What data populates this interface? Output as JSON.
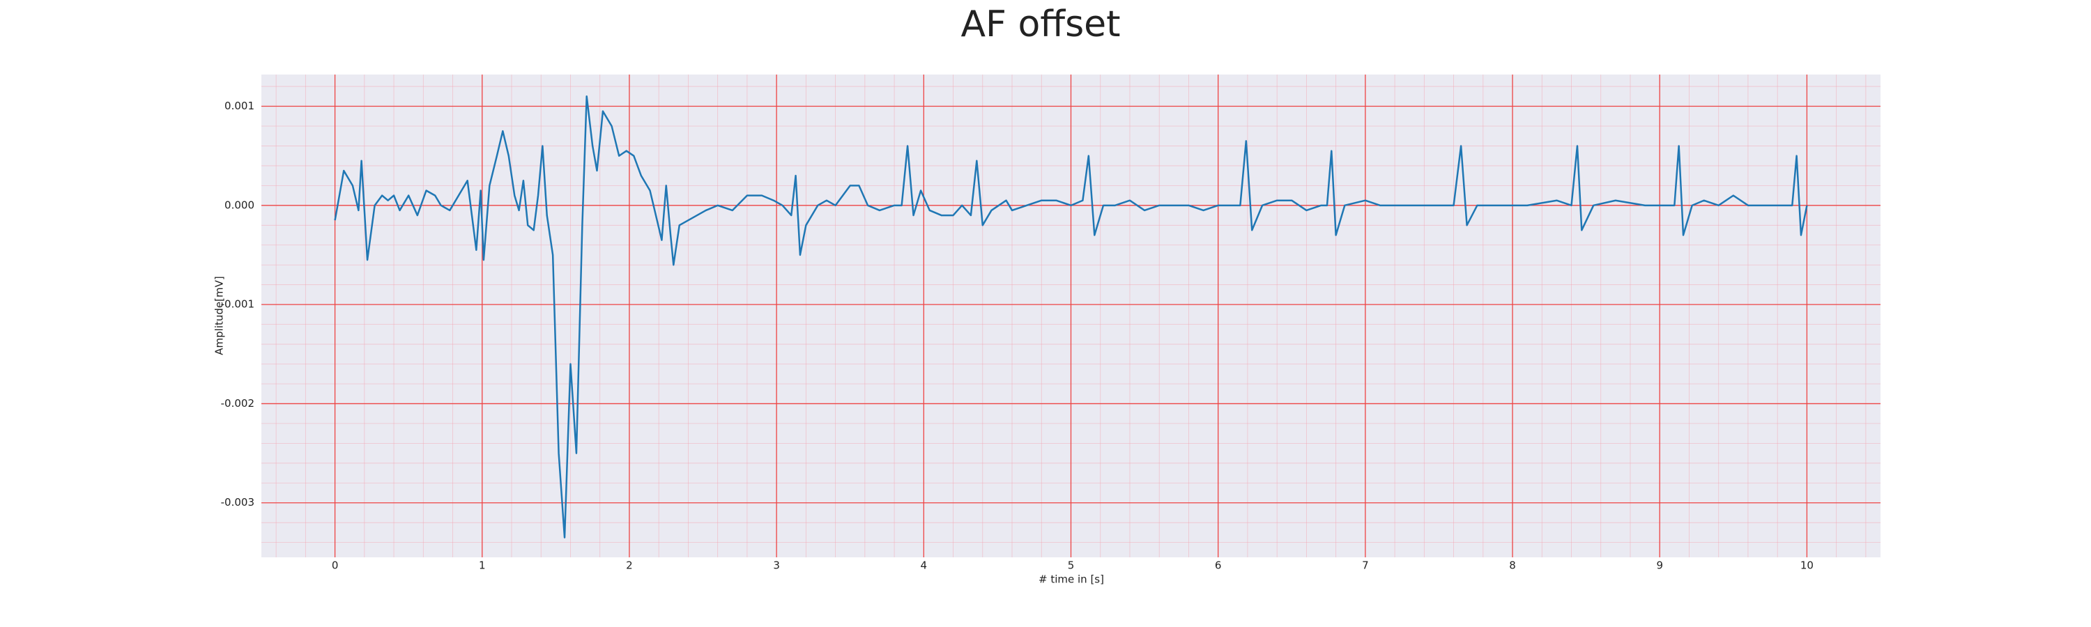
{
  "chart_data": {
    "type": "line",
    "title": "AF offset",
    "xlabel": "# time in [s]",
    "ylabel": "Amplitude[mV]",
    "xlim": [
      -0.5,
      10.5
    ],
    "xticks": [
      0,
      1,
      2,
      3,
      4,
      5,
      6,
      7,
      8,
      9,
      10
    ],
    "ylim": [
      -0.00355,
      0.00132
    ],
    "yticks": [
      -0.003,
      -0.002,
      -0.001,
      {
        "value": 0,
        "label": "0.000"
      },
      0.001
    ],
    "grid": true,
    "minor_grid": true,
    "series": [
      {
        "color": "#1f77b4",
        "x": [
          0,
          0.06,
          0.12,
          0.16,
          0.18,
          0.22,
          0.27,
          0.32,
          0.36,
          0.4,
          0.44,
          0.5,
          0.56,
          0.62,
          0.68,
          0.72,
          0.78,
          0.84,
          0.9,
          0.93,
          0.96,
          0.99,
          1.01,
          1.05,
          1.1,
          1.14,
          1.18,
          1.22,
          1.25,
          1.28,
          1.31,
          1.35,
          1.38,
          1.41,
          1.44,
          1.48,
          1.52,
          1.56,
          1.6,
          1.64,
          1.68,
          1.71,
          1.75,
          1.78,
          1.82,
          1.88,
          1.93,
          1.98,
          2.03,
          2.08,
          2.14,
          2.18,
          2.22,
          2.25,
          2.28,
          2.3,
          2.34,
          2.4,
          2.46,
          2.52,
          2.6,
          2.7,
          2.8,
          2.9,
          2.98,
          3.04,
          3.1,
          3.13,
          3.16,
          3.2,
          3.28,
          3.34,
          3.4,
          3.5,
          3.56,
          3.62,
          3.7,
          3.8,
          3.85,
          3.89,
          3.93,
          3.98,
          4.04,
          4.12,
          4.2,
          4.26,
          4.32,
          4.36,
          4.4,
          4.46,
          4.56,
          4.6,
          4.7,
          4.8,
          4.9,
          5.0,
          5.08,
          5.12,
          5.16,
          5.22,
          5.3,
          5.4,
          5.5,
          5.6,
          5.7,
          5.8,
          5.9,
          6.0,
          6.1,
          6.15,
          6.19,
          6.23,
          6.3,
          6.4,
          6.5,
          6.6,
          6.7,
          6.74,
          6.77,
          6.8,
          6.86,
          7.0,
          7.1,
          7.3,
          7.5,
          7.6,
          7.65,
          7.69,
          7.76,
          7.9,
          8.1,
          8.3,
          8.4,
          8.44,
          8.47,
          8.55,
          8.7,
          8.9,
          9.05,
          9.1,
          9.13,
          9.16,
          9.22,
          9.3,
          9.4,
          9.5,
          9.6,
          9.8,
          9.9,
          9.93,
          9.96,
          10.0
        ],
        "values": [
          -0.00015,
          0.00035,
          0.0002,
          -5e-05,
          0.00045,
          -0.00055,
          0,
          0.0001,
          5e-05,
          0.0001,
          -5e-05,
          0.0001,
          -0.0001,
          0.00015,
          0.0001,
          0,
          -5e-05,
          0.0001,
          0.00025,
          -0.0001,
          -0.00045,
          0.00015,
          -0.00055,
          0.0002,
          0.0005,
          0.00075,
          0.0005,
          0.0001,
          -5e-05,
          0.00025,
          -0.0002,
          -0.00025,
          0.0001,
          0.0006,
          -0.0001,
          -0.0005,
          -0.0025,
          -0.00335,
          -0.0016,
          -0.0025,
          -0.0002,
          0.0011,
          0.0006,
          0.00035,
          0.00095,
          0.0008,
          0.0005,
          0.00055,
          0.0005,
          0.0003,
          0.00015,
          -0.0001,
          -0.00035,
          0.0002,
          -0.0003,
          -0.0006,
          -0.0002,
          -0.00015,
          -0.0001,
          -5e-05,
          0,
          -5e-05,
          0.0001,
          0.0001,
          5e-05,
          0,
          -0.0001,
          0.0003,
          -0.0005,
          -0.0002,
          0,
          5e-05,
          0,
          0.0002,
          0.0002,
          0,
          -5e-05,
          0,
          0,
          0.0006,
          -0.0001,
          0.00015,
          -5e-05,
          -0.0001,
          -0.0001,
          0,
          -0.0001,
          0.00045,
          -0.0002,
          -5e-05,
          5e-05,
          -5e-05,
          0,
          5e-05,
          5e-05,
          0,
          5e-05,
          0.0005,
          -0.0003,
          0,
          0,
          5e-05,
          -5e-05,
          0,
          0,
          0,
          -5e-05,
          0,
          0,
          0,
          0.00065,
          -0.00025,
          0,
          5e-05,
          5e-05,
          -5e-05,
          0,
          0,
          0.00055,
          -0.0003,
          0,
          5e-05,
          0,
          0,
          0,
          0,
          0.0006,
          -0.0002,
          0,
          0,
          0,
          5e-05,
          0,
          0.0006,
          -0.00025,
          0,
          5e-05,
          0,
          0,
          0,
          0.0006,
          -0.0003,
          0,
          5e-05,
          0,
          0.0001,
          0,
          0,
          0,
          0.0005,
          -0.0003,
          0
        ]
      }
    ]
  }
}
